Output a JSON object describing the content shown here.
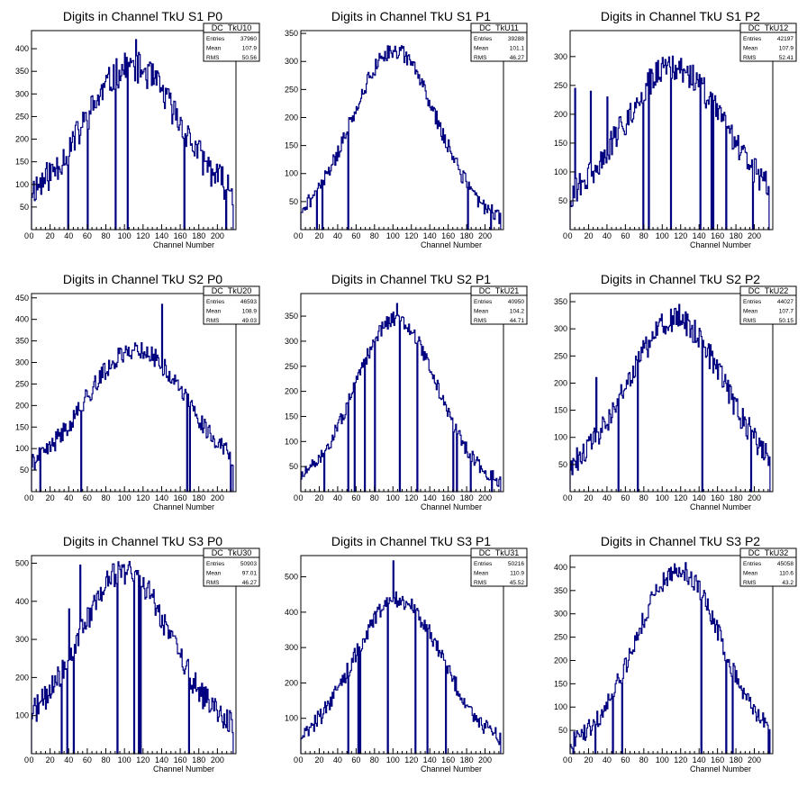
{
  "colors": {
    "line": "#000080",
    "axis": "#000000",
    "background": "#ffffff"
  },
  "stats_labels": {
    "entries": "Entries",
    "mean": "Mean",
    "rms": "RMS"
  },
  "chart_data": [
    {
      "type": "histogram-step",
      "title": "Digits in Channel TkU S1 P0",
      "xlabel": "Channel Number",
      "ylabel": "",
      "xlim": [
        0,
        220
      ],
      "ylim": [
        0,
        440
      ],
      "xticks": [
        0,
        20,
        40,
        60,
        80,
        100,
        120,
        140,
        160,
        180,
        200
      ],
      "yticks": [
        50,
        100,
        150,
        200,
        250,
        300,
        350,
        400
      ],
      "stats": {
        "name": "DC_TkU10",
        "entries": "37960",
        "mean": "107.9",
        "rms": "50.56"
      },
      "shape": {
        "mean": 107.9,
        "sigma": 50,
        "peak": 300,
        "base": 60,
        "noise": 35,
        "seed": 11,
        "spikes": [
          [
            112,
            420
          ]
        ]
      }
    },
    {
      "type": "histogram-step",
      "title": "Digits in Channel TkU S1 P1",
      "xlabel": "Channel Number",
      "ylabel": "",
      "xlim": [
        0,
        220
      ],
      "ylim": [
        0,
        355
      ],
      "xticks": [
        0,
        20,
        40,
        60,
        80,
        100,
        120,
        140,
        160,
        180,
        200
      ],
      "yticks": [
        50,
        100,
        150,
        200,
        250,
        300,
        350
      ],
      "stats": {
        "name": "DC_TkU11",
        "entries": "39288",
        "mean": "101.1",
        "rms": "46.27"
      },
      "shape": {
        "mean": 101,
        "sigma": 46,
        "peak": 310,
        "base": 10,
        "noise": 14,
        "seed": 21,
        "spikes": []
      }
    },
    {
      "type": "histogram-step",
      "title": "Digits in Channel TkU S1 P2",
      "xlabel": "Channel Number",
      "ylabel": "",
      "xlim": [
        0,
        220
      ],
      "ylim": [
        0,
        345
      ],
      "xticks": [
        0,
        20,
        40,
        60,
        80,
        100,
        120,
        140,
        160,
        180,
        200
      ],
      "yticks": [
        50,
        100,
        150,
        200,
        250,
        300
      ],
      "stats": {
        "name": "DC_TkU12",
        "entries": "42197",
        "mean": "107.9",
        "rms": "52.41"
      },
      "shape": {
        "mean": 112,
        "sigma": 55,
        "peak": 250,
        "base": 30,
        "noise": 25,
        "seed": 31,
        "spikes": [
          [
            5,
            245
          ],
          [
            22,
            240
          ],
          [
            40,
            230
          ]
        ]
      }
    },
    {
      "type": "histogram-step",
      "title": "Digits in Channel TkU S2 P0",
      "xlabel": "Channel Number",
      "ylabel": "",
      "xlim": [
        0,
        220
      ],
      "ylim": [
        0,
        460
      ],
      "xticks": [
        0,
        20,
        40,
        60,
        80,
        100,
        120,
        140,
        160,
        180,
        200
      ],
      "yticks": [
        50,
        100,
        150,
        200,
        250,
        300,
        350,
        400,
        450
      ],
      "stats": {
        "name": "DC_TkU20",
        "entries": "46593",
        "mean": "108.9",
        "rms": "49.03"
      },
      "shape": {
        "mean": 112,
        "sigma": 55,
        "peak": 300,
        "base": 30,
        "noise": 22,
        "seed": 41,
        "spikes": [
          [
            140,
            435
          ]
        ]
      }
    },
    {
      "type": "histogram-step",
      "title": "Digits in Channel TkU S2 P1",
      "xlabel": "Channel Number",
      "ylabel": "",
      "xlim": [
        0,
        220
      ],
      "ylim": [
        0,
        395
      ],
      "xticks": [
        0,
        20,
        40,
        60,
        80,
        100,
        120,
        140,
        160,
        180,
        200
      ],
      "yticks": [
        50,
        100,
        150,
        200,
        250,
        300,
        350
      ],
      "stats": {
        "name": "DC_TkU21",
        "entries": "40950",
        "mean": "104.2",
        "rms": "44.71"
      },
      "shape": {
        "mean": 103,
        "sigma": 44,
        "peak": 335,
        "base": 10,
        "noise": 14,
        "seed": 51,
        "spikes": [
          [
            104,
            375
          ]
        ]
      }
    },
    {
      "type": "histogram-step",
      "title": "Digits in Channel TkU S2 P2",
      "xlabel": "Channel Number",
      "ylabel": "",
      "xlim": [
        0,
        220
      ],
      "ylim": [
        0,
        365
      ],
      "xticks": [
        0,
        20,
        40,
        60,
        80,
        100,
        120,
        140,
        160,
        180,
        200
      ],
      "yticks": [
        50,
        100,
        150,
        200,
        250,
        300,
        350
      ],
      "stats": {
        "name": "DC_TkU22",
        "entries": "44027",
        "mean": "107.7",
        "rms": "50.15"
      },
      "shape": {
        "mean": 114,
        "sigma": 52,
        "peak": 290,
        "base": 25,
        "noise": 24,
        "seed": 61,
        "spikes": [
          [
            28,
            210
          ],
          [
            118,
            345
          ]
        ]
      }
    },
    {
      "type": "histogram-step",
      "title": "Digits in Channel TkU S3 P0",
      "xlabel": "Channel Number",
      "ylabel": "",
      "xlim": [
        0,
        220
      ],
      "ylim": [
        0,
        520
      ],
      "xticks": [
        0,
        20,
        40,
        60,
        80,
        100,
        120,
        140,
        160,
        180,
        200
      ],
      "yticks": [
        100,
        200,
        300,
        400,
        500
      ],
      "stats": {
        "name": "DC_TkU30",
        "entries": "50903",
        "mean": "97.01",
        "rms": "46.27"
      },
      "shape": {
        "mean": 100,
        "sigma": 48,
        "peak": 420,
        "base": 60,
        "noise": 35,
        "seed": 71,
        "spikes": [
          [
            52,
            495
          ],
          [
            40,
            380
          ]
        ]
      }
    },
    {
      "type": "histogram-step",
      "title": "Digits in Channel TkU S3 P1",
      "xlabel": "Channel Number",
      "ylabel": "",
      "xlim": [
        0,
        220
      ],
      "ylim": [
        0,
        560
      ],
      "xticks": [
        0,
        20,
        40,
        60,
        80,
        100,
        120,
        140,
        160,
        180,
        200
      ],
      "yticks": [
        100,
        200,
        300,
        400,
        500
      ],
      "stats": {
        "name": "DC_TkU31",
        "entries": "50216",
        "mean": "110.9",
        "rms": "45.52"
      },
      "shape": {
        "mean": 105,
        "sigma": 48,
        "peak": 420,
        "base": 15,
        "noise": 24,
        "seed": 81,
        "spikes": [
          [
            100,
            545
          ]
        ]
      }
    },
    {
      "type": "histogram-step",
      "title": "Digits in Channel TkU S3 P2",
      "xlabel": "Channel Number",
      "ylabel": "",
      "xlim": [
        0,
        220
      ],
      "ylim": [
        0,
        425
      ],
      "xticks": [
        0,
        20,
        40,
        60,
        80,
        100,
        120,
        140,
        160,
        180,
        200
      ],
      "yticks": [
        50,
        100,
        150,
        200,
        250,
        300,
        350,
        400
      ],
      "stats": {
        "name": "DC_TkU32",
        "entries": "45058",
        "mean": "110.6",
        "rms": "43.2"
      },
      "shape": {
        "mean": 117,
        "sigma": 46,
        "peak": 380,
        "base": 15,
        "noise": 22,
        "seed": 91,
        "spikes": [
          [
            125,
            410
          ]
        ]
      }
    }
  ]
}
